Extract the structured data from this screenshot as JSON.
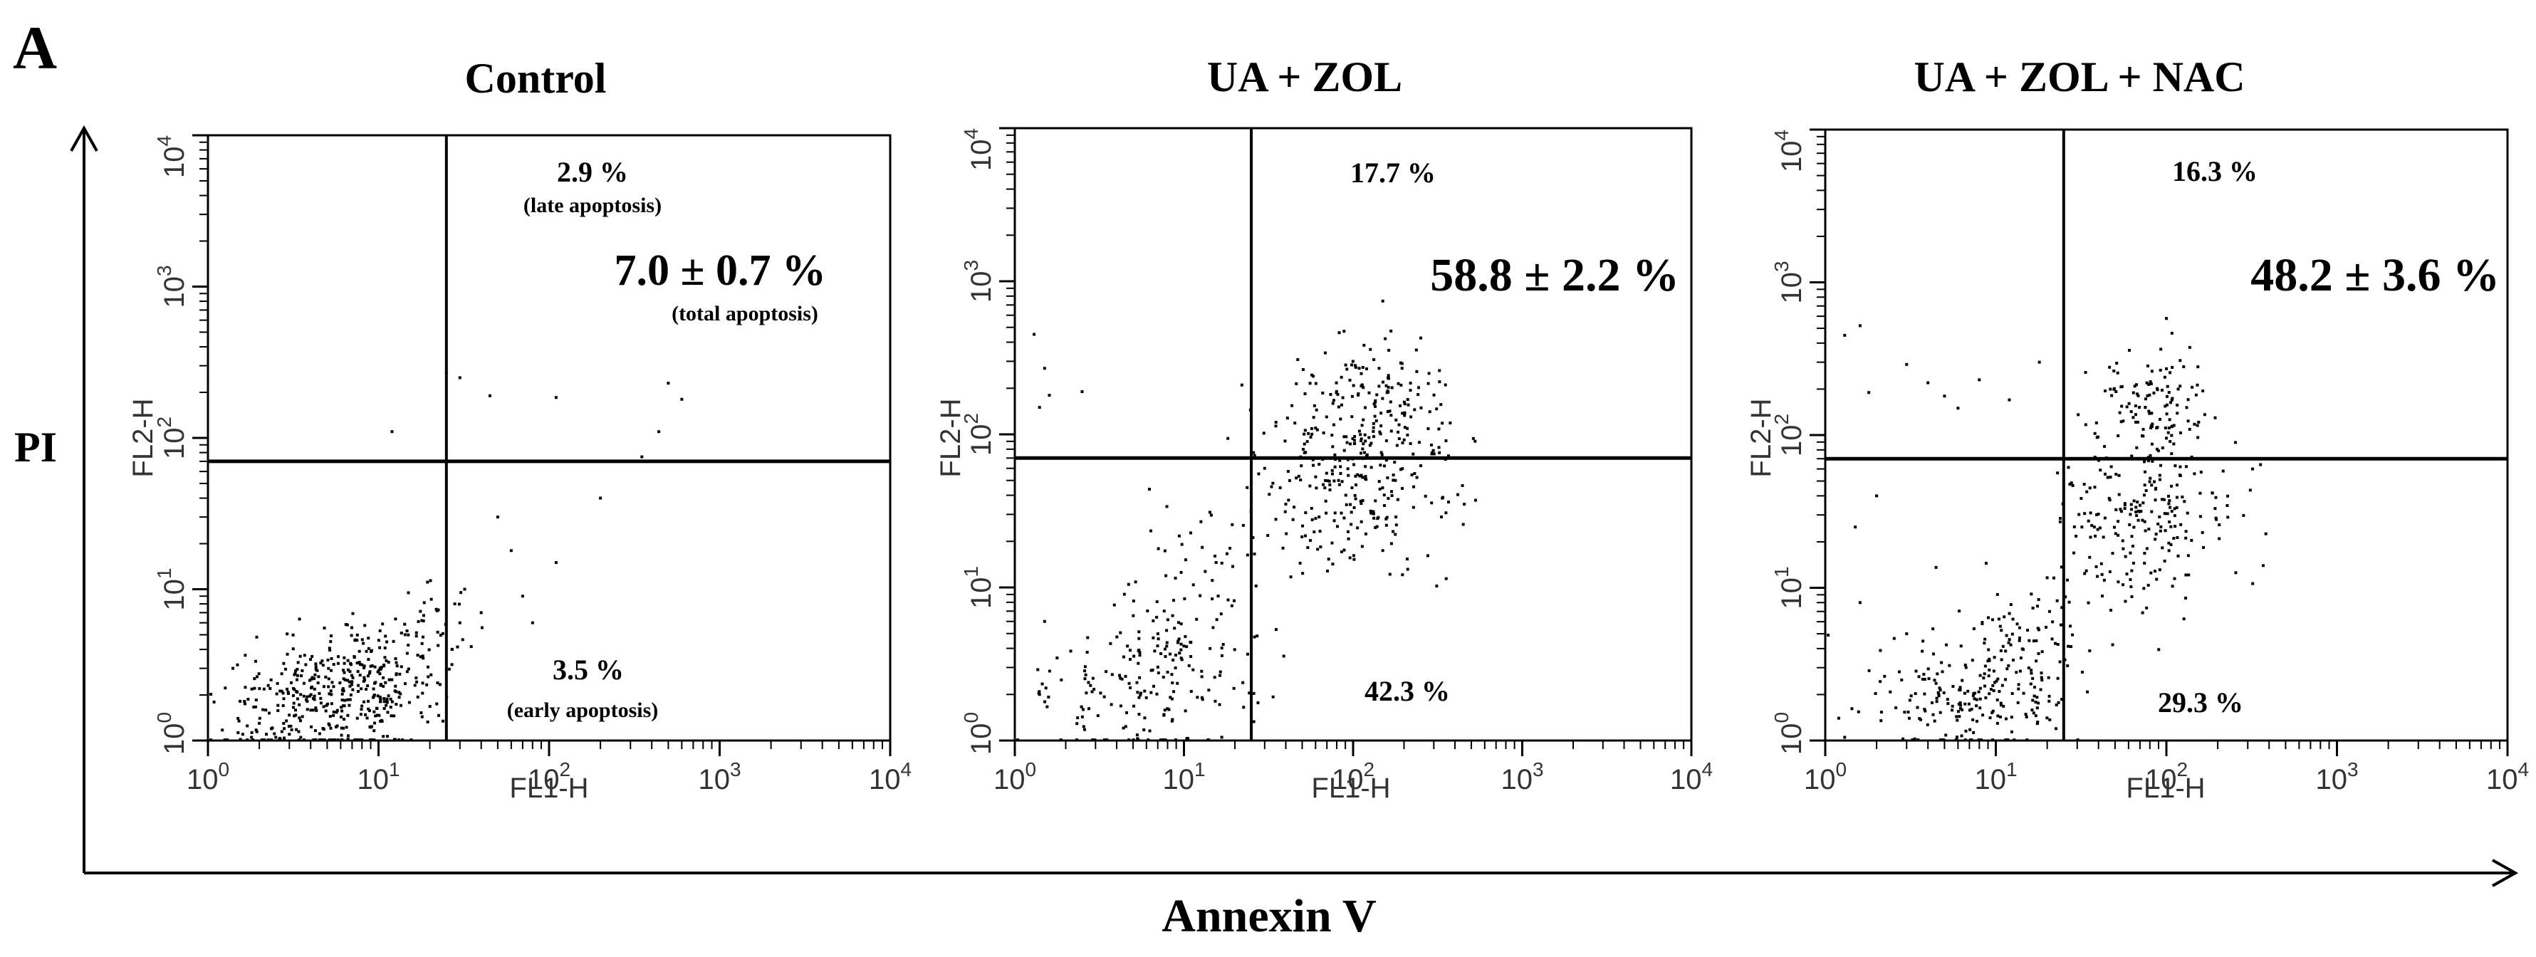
{
  "figure": {
    "panel_letter": "A",
    "y_axis_label": "PI",
    "x_axis_label": "Annexin V"
  },
  "chart_data": [
    {
      "type": "scatter",
      "title": "Control",
      "xlabel": "FL1-H",
      "ylabel": "FL2-H",
      "xscale": "log",
      "yscale": "log",
      "xlim": [
        1,
        10000
      ],
      "ylim": [
        1,
        10000
      ],
      "tick_bases": [
        "10",
        "10",
        "10",
        "10",
        "10"
      ],
      "tick_exponents": [
        "0",
        "1",
        "2",
        "3",
        "4"
      ],
      "gates": {
        "x": 25,
        "y": 70
      },
      "annotations": {
        "upper_right": "2.9 %",
        "upper_right_note": "(late apoptosis)",
        "total": "7.0 ± 0.7 %",
        "total_note": "(total apoptosis)",
        "lower_right": "3.5 %",
        "lower_right_note": "(early apoptosis)"
      },
      "population": [
        {
          "cx": 5.0,
          "cy": 1.8,
          "sx": 0.3,
          "sy": 0.2,
          "n": 320
        },
        {
          "cx": 10.0,
          "cy": 3.0,
          "sx": 0.2,
          "sy": 0.18,
          "n": 110
        },
        {
          "cx": 20.0,
          "cy": 5.0,
          "sx": 0.12,
          "sy": 0.16,
          "n": 35
        }
      ],
      "points": [
        [
          1.6,
          1.1
        ],
        [
          1.8,
          1.05
        ],
        [
          2.2,
          1.1
        ],
        [
          2.0,
          1.3
        ],
        [
          1.7,
          1.25
        ],
        [
          2.5,
          1.05
        ],
        [
          3.0,
          1.1
        ],
        [
          3.5,
          1.05
        ],
        [
          2.8,
          1.2
        ],
        [
          1.5,
          1.4
        ],
        [
          2.1,
          1.6
        ],
        [
          1.4,
          3.0
        ],
        [
          28,
          8
        ],
        [
          30,
          6
        ],
        [
          32,
          10
        ],
        [
          27,
          4
        ],
        [
          40,
          7
        ],
        [
          50,
          30
        ],
        [
          60,
          18
        ],
        [
          70,
          9
        ],
        [
          80,
          6
        ],
        [
          110,
          15
        ],
        [
          25,
          270
        ],
        [
          30,
          250
        ],
        [
          45,
          190
        ],
        [
          110,
          185
        ],
        [
          200,
          40
        ],
        [
          500,
          230
        ],
        [
          600,
          180
        ],
        [
          12,
          110
        ],
        [
          440,
          110
        ],
        [
          350,
          75
        ]
      ]
    },
    {
      "type": "scatter",
      "title": "UA  + ZOL",
      "xlabel": "FL1-H",
      "ylabel": "FL2-H",
      "xscale": "log",
      "yscale": "log",
      "xlim": [
        1,
        10000
      ],
      "ylim": [
        1,
        10000
      ],
      "tick_bases": [
        "10",
        "10",
        "10",
        "10",
        "10"
      ],
      "tick_exponents": [
        "0",
        "1",
        "2",
        "3",
        "4"
      ],
      "gates": {
        "x": 25,
        "y": 70
      },
      "annotations": {
        "upper_right": "17.7 %",
        "total": "58.8  ± 2.2 %",
        "lower_right": "42.3 %"
      },
      "population": [
        {
          "cx": 110.0,
          "cy": 55.0,
          "sx": 0.28,
          "sy": 0.35,
          "n": 300
        },
        {
          "cx": 150.0,
          "cy": 170.0,
          "sx": 0.18,
          "sy": 0.2,
          "n": 90
        },
        {
          "cx": 5.0,
          "cy": 2.0,
          "sx": 0.35,
          "sy": 0.22,
          "n": 120
        },
        {
          "cx": 9.0,
          "cy": 4.0,
          "sx": 0.25,
          "sy": 0.25,
          "n": 80
        },
        {
          "cx": 12.0,
          "cy": 12.0,
          "sx": 0.15,
          "sy": 0.3,
          "n": 40
        }
      ],
      "points": [
        [
          1.3,
          450
        ],
        [
          1.5,
          270
        ],
        [
          1.6,
          180
        ],
        [
          2.5,
          190
        ],
        [
          1.4,
          150
        ],
        [
          1.5,
          6
        ],
        [
          1.4,
          2
        ],
        [
          22,
          210
        ],
        [
          60,
          110
        ],
        [
          40,
          35
        ],
        [
          30,
          60
        ],
        [
          35,
          120
        ]
      ]
    },
    {
      "type": "scatter",
      "title": "UA  + ZOL + NAC",
      "xlabel": "FL1-H",
      "ylabel": "FL2-H",
      "xscale": "log",
      "yscale": "log",
      "xlim": [
        1,
        10000
      ],
      "ylim": [
        1,
        10000
      ],
      "tick_bases": [
        "10",
        "10",
        "10",
        "10",
        "10"
      ],
      "tick_exponents": [
        "0",
        "1",
        "2",
        "3",
        "4"
      ],
      "gates": {
        "x": 25,
        "y": 70
      },
      "annotations": {
        "upper_right": "16.3 %",
        "total": "48.2  ± 3.6 %",
        "lower_right": "29.3 %"
      },
      "population": [
        {
          "cx": 70.0,
          "cy": 28.0,
          "sx": 0.25,
          "sy": 0.3,
          "n": 230
        },
        {
          "cx": 80.0,
          "cy": 150.0,
          "sx": 0.18,
          "sy": 0.2,
          "n": 110
        },
        {
          "cx": 7.0,
          "cy": 2.0,
          "sx": 0.32,
          "sy": 0.22,
          "n": 200
        },
        {
          "cx": 14.0,
          "cy": 5.0,
          "sx": 0.2,
          "sy": 0.22,
          "n": 80
        }
      ],
      "points": [
        [
          1.3,
          450
        ],
        [
          1.6,
          520
        ],
        [
          1.8,
          190
        ],
        [
          3.0,
          290
        ],
        [
          4.0,
          220
        ],
        [
          5.0,
          180
        ],
        [
          6.0,
          150
        ],
        [
          8.0,
          230
        ],
        [
          12,
          170
        ],
        [
          18,
          300
        ],
        [
          1.5,
          25
        ],
        [
          2.0,
          40
        ],
        [
          1.6,
          8
        ],
        [
          3.0,
          5
        ],
        [
          100,
          580
        ],
        [
          320,
          60
        ],
        [
          400,
          70
        ],
        [
          1.2,
          1.4
        ],
        [
          1.3,
          1.05
        ]
      ]
    }
  ]
}
